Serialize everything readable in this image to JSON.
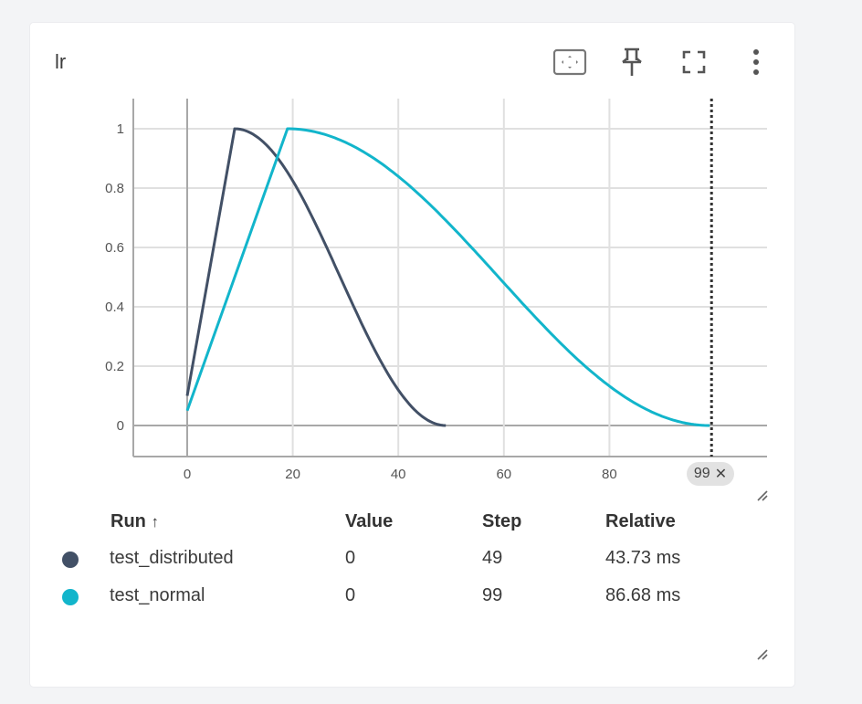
{
  "card": {
    "title": "lr",
    "toolbar": {
      "fit_domain": "fit-to-data-icon",
      "pin": "pin-icon",
      "fullscreen": "fullscreen-icon",
      "more": "more-vert-icon"
    }
  },
  "chart_data": {
    "type": "line",
    "title": "lr",
    "xlabel": "",
    "ylabel": "",
    "xlim": [
      -10,
      110
    ],
    "ylim": [
      -0.1,
      1.1
    ],
    "x_ticks": [
      0,
      20,
      40,
      60,
      80
    ],
    "y_ticks": [
      0,
      0.2,
      0.4,
      0.6,
      0.8,
      1
    ],
    "x_tick_labels": [
      "0",
      "20",
      "40",
      "60",
      "80"
    ],
    "y_tick_labels": [
      "0",
      "0.2",
      "0.4",
      "0.6",
      "0.8",
      "1"
    ],
    "grid": true,
    "cursor_step": 99,
    "cursor_label": "99",
    "series": [
      {
        "name": "test_distributed",
        "color": "#425066",
        "x": [
          0,
          9,
          14,
          19,
          24,
          29,
          34,
          39,
          44,
          49
        ],
        "y": [
          0.1,
          1.0,
          0.962,
          0.854,
          0.691,
          0.5,
          0.309,
          0.146,
          0.038,
          0.0
        ]
      },
      {
        "name": "test_normal",
        "color": "#12b5cb",
        "x": [
          0,
          19,
          29,
          39,
          49,
          59,
          69,
          79,
          89,
          99
        ],
        "y": [
          0.05,
          1.0,
          0.962,
          0.854,
          0.691,
          0.5,
          0.309,
          0.146,
          0.038,
          0.0
        ]
      }
    ]
  },
  "legend_table": {
    "headers": {
      "run": "Run",
      "sort_icon": "↑",
      "value": "Value",
      "step": "Step",
      "relative": "Relative"
    },
    "rows": [
      {
        "run": "test_distributed",
        "value": "0",
        "step": "49",
        "relative": "43.73 ms",
        "color": "#425066"
      },
      {
        "run": "test_normal",
        "value": "0",
        "step": "99",
        "relative": "86.68 ms",
        "color": "#12b5cb"
      }
    ]
  }
}
